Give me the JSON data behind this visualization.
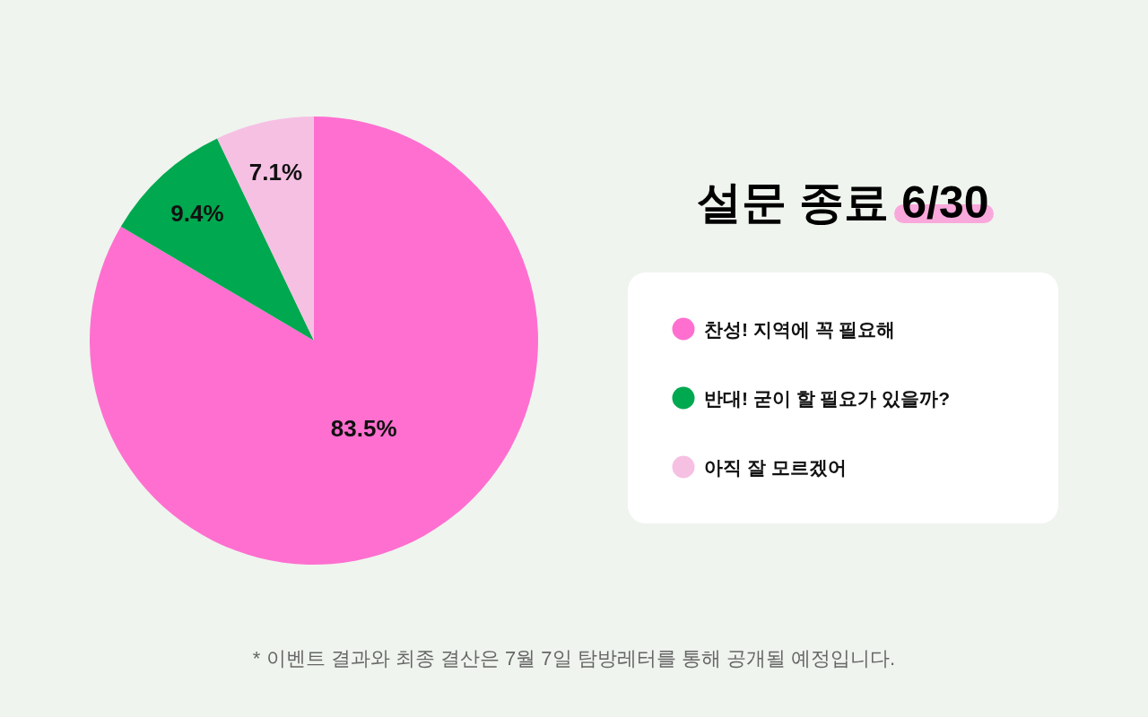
{
  "chart_data": {
    "type": "pie",
    "title": "설문 종료 6/30",
    "categories": [
      "찬성! 지역에 꼭 필요해",
      "반대! 굳이 할 필요가 있을까?",
      "아직 잘 모르겠어"
    ],
    "values": [
      83.5,
      9.4,
      7.1
    ],
    "colors": [
      "#ff6fd0",
      "#00a84f",
      "#f6c0e3"
    ],
    "value_labels": [
      "83.5%",
      "9.4%",
      "7.1%"
    ],
    "legend": "right",
    "annotations": [
      "* 이벤트 결과와 최종 결산은 7월 7일 탐방레터를 통해 공개될 예정입니다."
    ]
  }
}
